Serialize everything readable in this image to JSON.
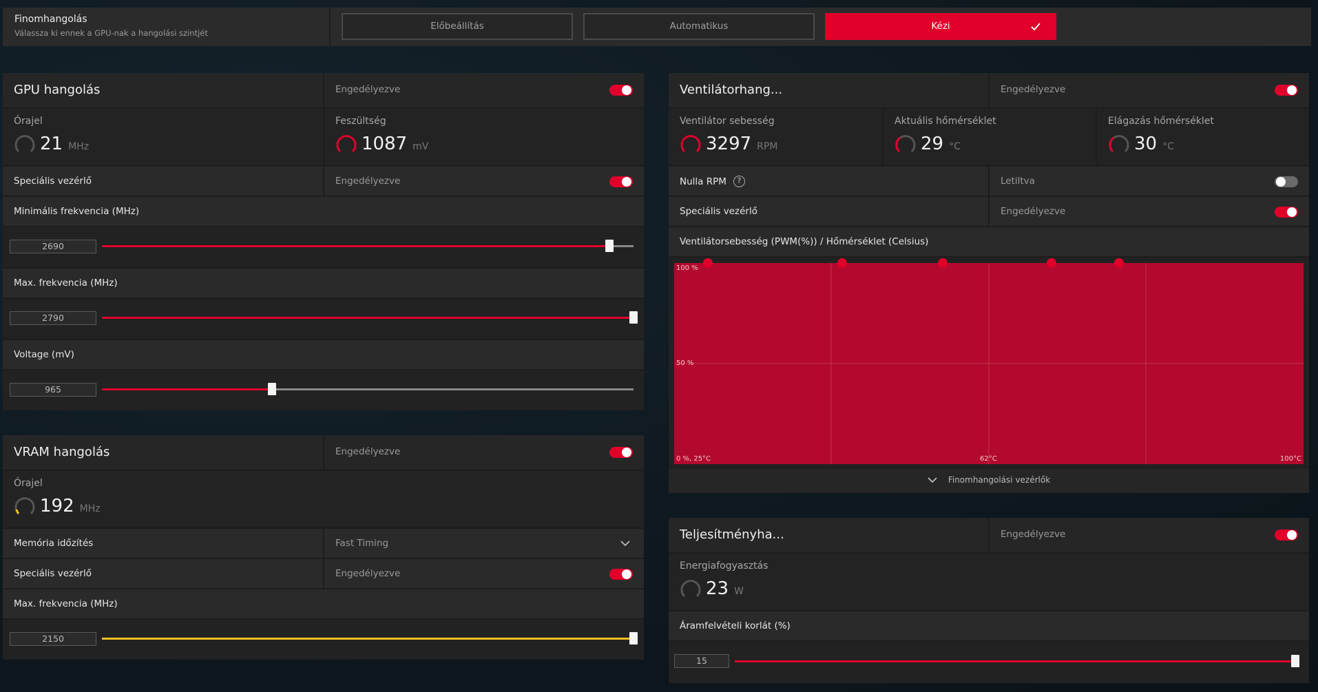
{
  "tuning": {
    "title": "Finomhangolás",
    "subtitle": "Válassza ki ennek a GPU-nak a hangolási szintjét",
    "options": [
      "Előbeállítás",
      "Automatikus",
      "Kézi"
    ],
    "selected": "Kézi"
  },
  "gpu": {
    "title": "GPU hangolás",
    "status": "Engedélyezve",
    "clock_label": "Órajel",
    "clock_value": "21",
    "clock_unit": "MHz",
    "voltage_label": "Feszültség",
    "voltage_value": "1087",
    "voltage_unit": "mV",
    "advanced_label": "Speciális vezérlő",
    "advanced_status": "Engedélyezve",
    "min_freq_label": "Minimális frekvencia (MHz)",
    "min_freq_value": "2690",
    "min_freq_fraction": 0.955,
    "max_freq_label": "Max. frekvencia (MHz)",
    "max_freq_value": "2790",
    "max_freq_fraction": 1.0,
    "voltage_slider_label": "Voltage (mV)",
    "voltage_slider_value": "965",
    "voltage_slider_fraction": 0.32
  },
  "vram": {
    "title": "VRAM hangolás",
    "status": "Engedélyezve",
    "clock_label": "Órajel",
    "clock_value": "192",
    "clock_unit": "MHz",
    "timing_label": "Memória időzítés",
    "timing_value": "Fast Timing",
    "advanced_label": "Speciális vezérlő",
    "advanced_status": "Engedélyezve",
    "max_freq_label": "Max. frekvencia (MHz)",
    "max_freq_value": "2150",
    "max_freq_fraction": 1.0
  },
  "fan": {
    "title": "Ventilátorhang...",
    "status": "Engedélyezve",
    "speed_label": "Ventilátor sebesség",
    "speed_value": "3297",
    "speed_unit": "RPM",
    "temp_label": "Aktuális hőmérséklet",
    "temp_value": "29",
    "temp_unit": "°C",
    "junction_label": "Elágazás hőmérséklet",
    "junction_value": "30",
    "junction_unit": "°C",
    "zero_rpm_label": "Nulla RPM",
    "zero_rpm_status": "Letiltva",
    "advanced_label": "Speciális vezérlő",
    "advanced_status": "Engedélyezve",
    "curve_label": "Ventilátorsebesség (PWM(%)) / Hőmérséklet (Celsius)",
    "y_max_label": "100 %",
    "y_mid_label": "50 %",
    "origin_label": "0 %, 25°C",
    "x_mid_label": "62°C",
    "x_max_label": "100°C",
    "tuning_controls": "Finomhangolási vezérlők",
    "curve_points": [
      {
        "temp": 29,
        "pwm": 100
      },
      {
        "temp": 45,
        "pwm": 100
      },
      {
        "temp": 57,
        "pwm": 100
      },
      {
        "temp": 70,
        "pwm": 100
      },
      {
        "temp": 78,
        "pwm": 100
      }
    ]
  },
  "power": {
    "title": "Teljesítményha...",
    "status": "Engedélyezve",
    "consumption_label": "Energiafogyasztás",
    "consumption_value": "23",
    "consumption_unit": "W",
    "limit_label": "Áramfelvételi korlát (%)",
    "limit_value": "15",
    "limit_fraction": 1.0
  },
  "colors": {
    "accent": "#e0002a",
    "vram_accent": "#f0c020"
  }
}
